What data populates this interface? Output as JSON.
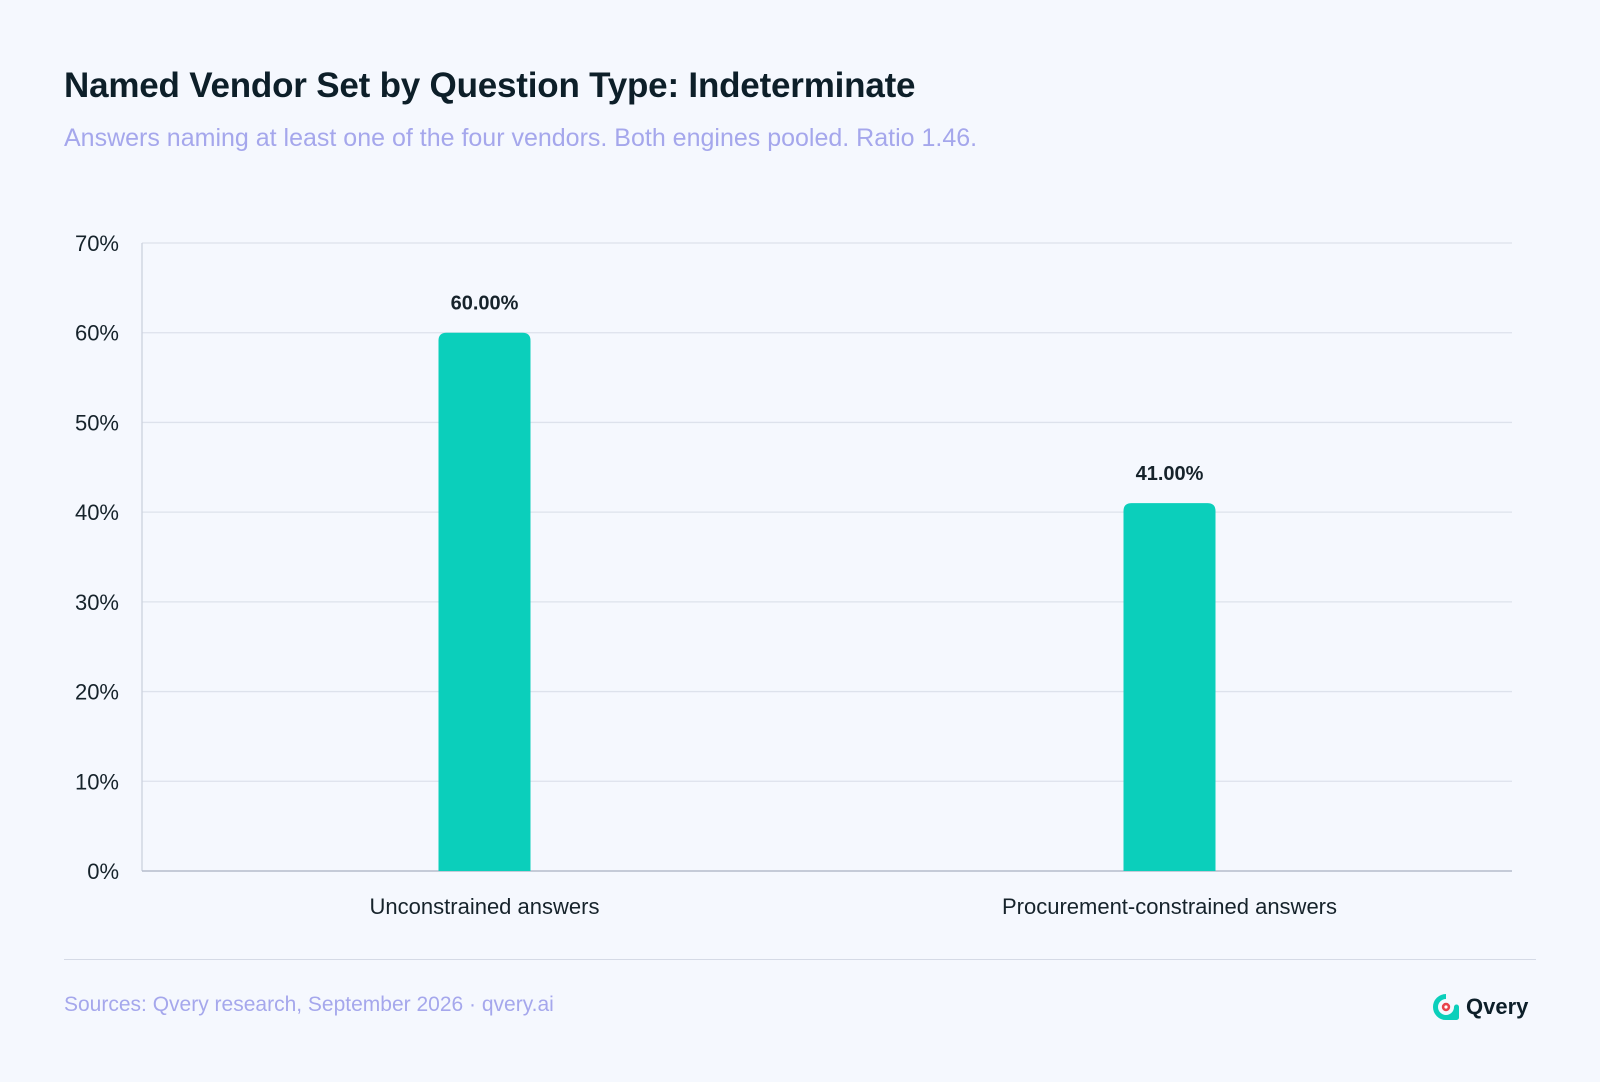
{
  "header": {
    "title": "Named Vendor Set by Question Type: Indeterminate",
    "subtitle": "Answers naming at least one of the four vendors. Both engines pooled. Ratio 1.46."
  },
  "chart_data": {
    "type": "bar",
    "title": "Named Vendor Set by Question Type: Indeterminate",
    "subtitle": "Answers naming at least one of the four vendors. Both engines pooled. Ratio 1.46.",
    "categories": [
      "Unconstrained answers",
      "Procurement-constrained answers"
    ],
    "values": [
      60.0,
      41.0
    ],
    "value_labels": [
      "60.00%",
      "41.00%"
    ],
    "xlabel": "",
    "ylabel": "",
    "ylim": [
      0,
      70
    ],
    "yticks": [
      0,
      10,
      20,
      30,
      40,
      50,
      60,
      70
    ],
    "ytick_labels": [
      "0%",
      "10%",
      "20%",
      "30%",
      "40%",
      "50%",
      "60%",
      "70%"
    ],
    "grid": true,
    "legend": false,
    "bar_color": "#0bcfbb"
  },
  "footer": {
    "sources": "Sources: Qvery research, September 2026 · qvery.ai",
    "brand_name": "Qvery"
  },
  "colors": {
    "background": "#f5f8fe",
    "title": "#0d1f29",
    "subtitle": "#a5a7ec",
    "bar": "#0bcfbb",
    "grid": "#dde2ec",
    "brand_accent": "#0bcfbb",
    "brand_core": "#e8434b"
  },
  "icons": {
    "brand_logo": "qvery-logo-icon"
  }
}
